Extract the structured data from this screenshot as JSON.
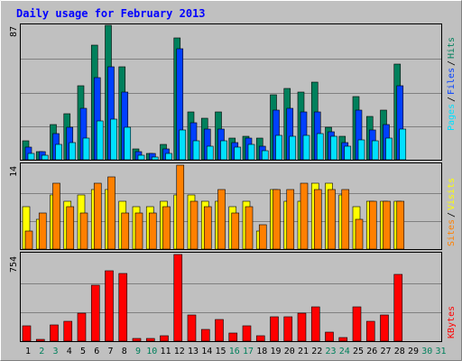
{
  "chart_data": {
    "type": "bar",
    "title": "Daily usage for February 2013",
    "categories": [
      "1",
      "2",
      "3",
      "4",
      "5",
      "6",
      "7",
      "8",
      "9",
      "10",
      "11",
      "12",
      "13",
      "14",
      "15",
      "16",
      "17",
      "18",
      "19",
      "20",
      "21",
      "22",
      "23",
      "24",
      "25",
      "26",
      "27",
      "28",
      "29",
      "30",
      "31"
    ],
    "weekend_days": [
      "2",
      "3",
      "9",
      "10",
      "16",
      "17",
      "23",
      "24",
      "30",
      "31"
    ],
    "panels": [
      {
        "name": "hits",
        "y_max_label": "87",
        "ylim": [
          0,
          87
        ],
        "legend": [
          "Pages",
          "Files",
          "Hits"
        ],
        "series": [
          {
            "name": "Hits",
            "values": [
              12,
              5,
              23,
              30,
              48,
              74,
              87,
              60,
              7,
              4,
              10,
              79,
              31,
              27,
              31,
              14,
              15,
              14,
              42,
              46,
              44,
              50,
              21,
              15,
              41,
              28,
              32,
              62
            ]
          },
          {
            "name": "Files",
            "values": [
              8,
              5,
              17,
              21,
              33,
              53,
              60,
              44,
              5,
              4,
              7,
              72,
              24,
              20,
              20,
              11,
              14,
              9,
              32,
              33,
              31,
              31,
              18,
              11,
              32,
              19,
              23,
              48
            ]
          },
          {
            "name": "Pages",
            "values": [
              4,
              3,
              10,
              11,
              14,
              25,
              26,
              21,
              3,
              2,
              4,
              19,
              12,
              9,
              12,
              8,
              10,
              6,
              16,
              15,
              16,
              17,
              15,
              9,
              13,
              12,
              14,
              20
            ]
          }
        ]
      },
      {
        "name": "visits",
        "y_max_label": "14",
        "ylim": [
          0,
          14
        ],
        "legend": [
          "Sites",
          "Visits"
        ],
        "series": [
          {
            "name": "Visits",
            "values": [
              7,
              5,
              9,
              8,
              9,
              10,
              10,
              8,
              7,
              7,
              8,
              9,
              9,
              8,
              8,
              7,
              8,
              3,
              10,
              8,
              8,
              11,
              11,
              9,
              7,
              8,
              8,
              8
            ]
          },
          {
            "name": "Sites",
            "values": [
              3,
              6,
              11,
              7,
              6,
              11,
              12,
              6,
              6,
              6,
              7,
              14,
              8,
              7,
              10,
              6,
              7,
              4,
              10,
              10,
              11,
              10,
              10,
              10,
              5,
              8,
              8,
              8
            ]
          }
        ]
      },
      {
        "name": "kbytes",
        "y_max_label": "754",
        "ylim": [
          0,
          754
        ],
        "legend": [
          "KBytes"
        ],
        "series": [
          {
            "name": "KBytes",
            "values": [
              130,
              15,
              140,
              175,
              240,
              490,
              610,
              590,
              20,
              20,
              45,
              754,
              225,
              105,
              185,
              70,
              135,
              45,
              215,
              215,
              245,
              295,
              80,
              30,
              300,
              175,
              225,
              580
            ]
          }
        ]
      }
    ],
    "colors": {
      "hits": "#00805c",
      "files": "#0040ff",
      "pages": "#00e0ff",
      "visits": "#ffff00",
      "sites": "#ff8000",
      "kbytes": "#ff0000",
      "weekday_label": "#000000",
      "weekend_label": "#00805c",
      "title": "#0000ff",
      "background": "#c0c0c0"
    }
  }
}
